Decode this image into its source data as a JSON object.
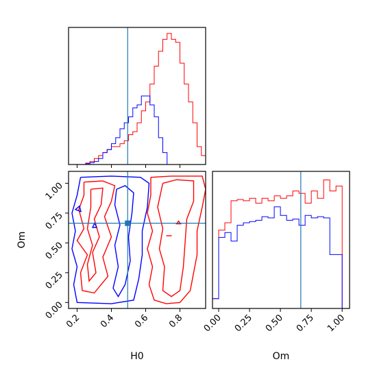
{
  "chart_data": [
    {
      "panel": "top-left",
      "type": "histogram",
      "description": "H0 marginal",
      "x_range": [
        0.15,
        0.95
      ],
      "truth_line": 0.495,
      "colors": {
        "series_a": "#ff0000",
        "series_b": "#0000ff",
        "truth": "#1f77b4"
      },
      "x_ticks": [
        "0.2",
        "0.4",
        "0.6",
        "0.8"
      ],
      "x_tick_values": [
        0.2,
        0.4,
        0.6,
        0.8
      ],
      "series": [
        {
          "color": "red",
          "x": [
            0.15,
            0.175,
            0.2,
            0.225,
            0.25,
            0.275,
            0.3,
            0.325,
            0.35,
            0.375,
            0.4,
            0.425,
            0.45,
            0.475,
            0.5,
            0.525,
            0.55,
            0.575,
            0.6,
            0.625,
            0.65,
            0.675,
            0.7,
            0.725,
            0.75,
            0.775,
            0.8,
            0.825,
            0.85,
            0.875,
            0.9,
            0.925,
            0.95
          ],
          "values": [
            0,
            0,
            0,
            0,
            0.5,
            1,
            2,
            3,
            4,
            5,
            6,
            6,
            7,
            8,
            10,
            11,
            14,
            18,
            21,
            27,
            33,
            38,
            42,
            44,
            42,
            41,
            34,
            27,
            21,
            14,
            6,
            3,
            0
          ]
        },
        {
          "color": "blue",
          "x": [
            0.15,
            0.175,
            0.2,
            0.225,
            0.25,
            0.275,
            0.3,
            0.325,
            0.35,
            0.375,
            0.4,
            0.425,
            0.45,
            0.475,
            0.5,
            0.525,
            0.55,
            0.575,
            0.6,
            0.625,
            0.65,
            0.675,
            0.7,
            0.725,
            0.75,
            0.775,
            0.8,
            0.825,
            0.85,
            0.875,
            0.9,
            0.925,
            0.95
          ],
          "values": [
            0,
            0,
            0,
            0,
            0.3,
            0.6,
            1,
            2,
            4,
            5,
            7,
            9,
            12,
            14,
            16,
            19,
            20,
            23,
            23,
            20,
            16,
            9,
            4,
            0,
            0,
            0,
            0,
            0,
            0,
            0,
            0,
            0,
            0
          ]
        }
      ]
    },
    {
      "panel": "bottom-left",
      "type": "contour",
      "x_range": [
        0.15,
        0.95
      ],
      "y_range": [
        -0.05,
        1.1
      ],
      "truth_x": 0.495,
      "truth_y": 0.665,
      "x_ticks": [
        "0.2",
        "0.4",
        "0.6",
        "0.8"
      ],
      "x_tick_values": [
        0.2,
        0.4,
        0.6,
        0.8
      ],
      "y_ticks": [
        "0.00",
        "0.25",
        "0.50",
        "0.75",
        "1.00"
      ],
      "y_tick_values": [
        0.0,
        0.25,
        0.5,
        0.75,
        1.0
      ],
      "xlabel": "H0",
      "ylabel": "Om",
      "series": [
        {
          "color": "red",
          "contour_center_x": 0.73,
          "contour_spread_x": 0.11
        },
        {
          "color": "blue",
          "contour_center_x": 0.47,
          "contour_spread_x": 0.09
        }
      ]
    },
    {
      "panel": "bottom-right",
      "type": "histogram",
      "description": "Om marginal",
      "x_range": [
        -0.05,
        1.06
      ],
      "truth_line": 0.665,
      "x_ticks": [
        "0.00",
        "0.25",
        "0.50",
        "0.75",
        "1.00"
      ],
      "x_tick_values": [
        0.0,
        0.25,
        0.5,
        0.75,
        1.0
      ],
      "xlabel": "Om",
      "series": [
        {
          "color": "red",
          "x": [
            -0.05,
            0.0,
            0.05,
            0.1,
            0.15,
            0.2,
            0.25,
            0.3,
            0.35,
            0.4,
            0.45,
            0.5,
            0.55,
            0.6,
            0.65,
            0.7,
            0.75,
            0.8,
            0.85,
            0.9,
            0.95,
            1.0,
            1.05
          ],
          "values": [
            0.08,
            0.64,
            0.7,
            0.88,
            0.89,
            0.88,
            0.9,
            0.86,
            0.9,
            0.88,
            0.92,
            0.9,
            0.92,
            0.96,
            0.94,
            0.86,
            0.96,
            0.9,
            1.05,
            0.96,
            1.0,
            0,
            0
          ]
        },
        {
          "color": "blue",
          "x": [
            -0.05,
            0.0,
            0.05,
            0.1,
            0.15,
            0.2,
            0.25,
            0.3,
            0.35,
            0.4,
            0.45,
            0.5,
            0.55,
            0.6,
            0.65,
            0.7,
            0.75,
            0.8,
            0.85,
            0.9,
            0.95,
            1.0,
            1.05
          ],
          "values": [
            0.08,
            0.58,
            0.62,
            0.55,
            0.68,
            0.7,
            0.71,
            0.72,
            0.75,
            0.74,
            0.83,
            0.76,
            0.72,
            0.73,
            0.68,
            0.76,
            0.74,
            0.75,
            0.74,
            0.44,
            0.44,
            0.0,
            0.0
          ]
        }
      ]
    }
  ]
}
